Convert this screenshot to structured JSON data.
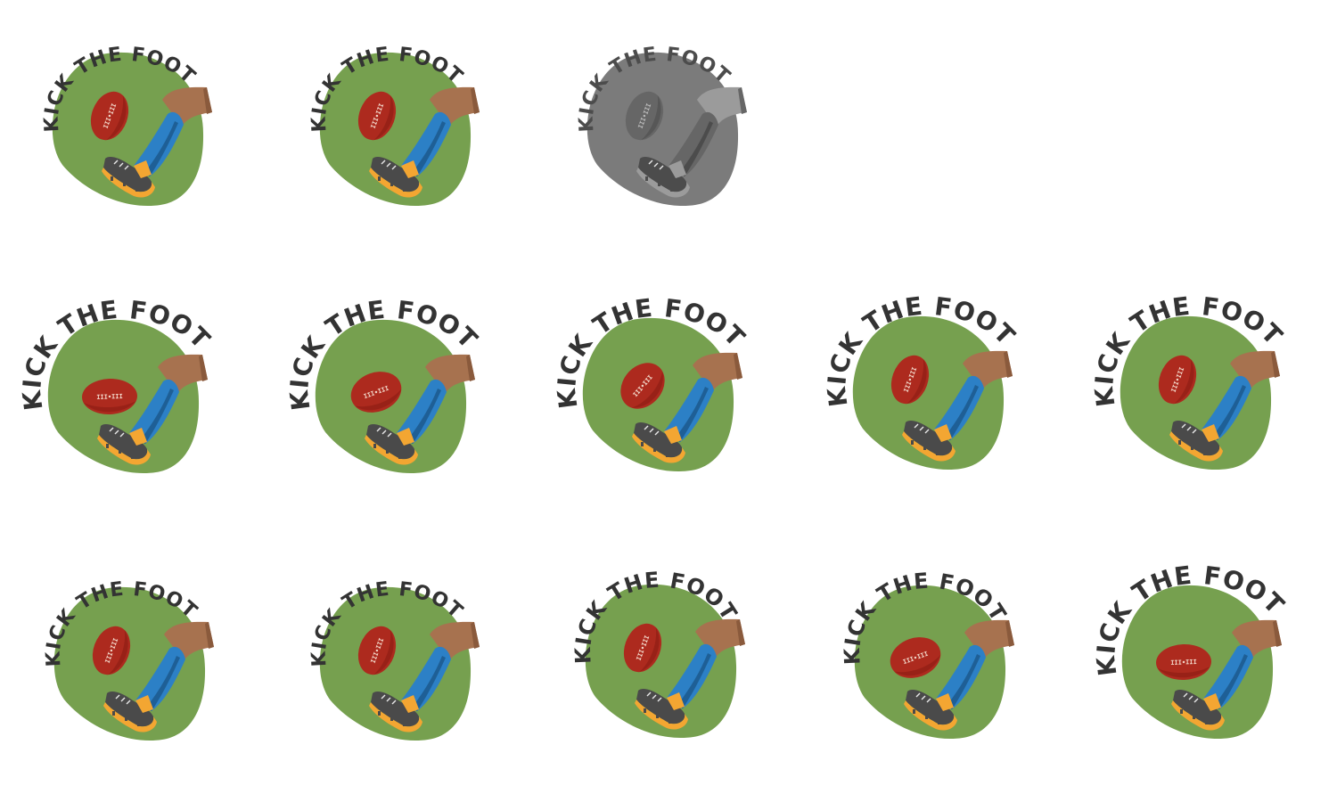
{
  "sheet": {
    "background": "#ffffff"
  },
  "badge": {
    "title": "KICK THE FOOTY",
    "ball_mark": "III•III",
    "icon_names": [
      "blob-background",
      "football-icon",
      "leg-icon",
      "boot-icon"
    ]
  },
  "colors": {
    "field_green": "#76a04f",
    "ball_red": "#ad2a1e",
    "ball_dark": "#8a1c13",
    "sock_blue": "#2c80c6",
    "sock_shadow": "#1e5f96",
    "skin": "#a7724f",
    "skin_dark": "#8a5a3c",
    "boot_dark": "#4a4a4a",
    "boot_orange": "#f3a632",
    "text_dark": "#333333",
    "gray_bg": "#7b7b7b",
    "gray_mid": "#666666",
    "gray_light": "#9b9b9b",
    "gray_dark": "#4c4c4c"
  },
  "frames": [
    {
      "row": 1,
      "col": 1,
      "variant": "color",
      "text_arc": "small",
      "ball_pose": "upright"
    },
    {
      "row": 1,
      "col": 2,
      "variant": "color",
      "text_arc": "small",
      "ball_pose": "upright"
    },
    {
      "row": 1,
      "col": 3,
      "variant": "grayscale",
      "text_arc": "small",
      "ball_pose": "upright"
    },
    {
      "row": 2,
      "col": 1,
      "variant": "color",
      "text_arc": "large",
      "ball_pose": "flat"
    },
    {
      "row": 2,
      "col": 2,
      "variant": "color",
      "text_arc": "large",
      "ball_pose": "tilted-flat"
    },
    {
      "row": 2,
      "col": 3,
      "variant": "color",
      "text_arc": "large",
      "ball_pose": "tilted"
    },
    {
      "row": 2,
      "col": 4,
      "variant": "color",
      "text_arc": "large",
      "ball_pose": "upright"
    },
    {
      "row": 2,
      "col": 5,
      "variant": "color",
      "text_arc": "large",
      "ball_pose": "upright"
    },
    {
      "row": 3,
      "col": 1,
      "variant": "color",
      "text_arc": "small",
      "ball_pose": "upright"
    },
    {
      "row": 3,
      "col": 2,
      "variant": "color",
      "text_arc": "small",
      "ball_pose": "upright"
    },
    {
      "row": 3,
      "col": 3,
      "variant": "color",
      "text_arc": "medium",
      "ball_pose": "upright"
    },
    {
      "row": 3,
      "col": 4,
      "variant": "color",
      "text_arc": "medium",
      "ball_pose": "tilted-flat"
    },
    {
      "row": 3,
      "col": 5,
      "variant": "color",
      "text_arc": "large",
      "ball_pose": "flat"
    }
  ]
}
